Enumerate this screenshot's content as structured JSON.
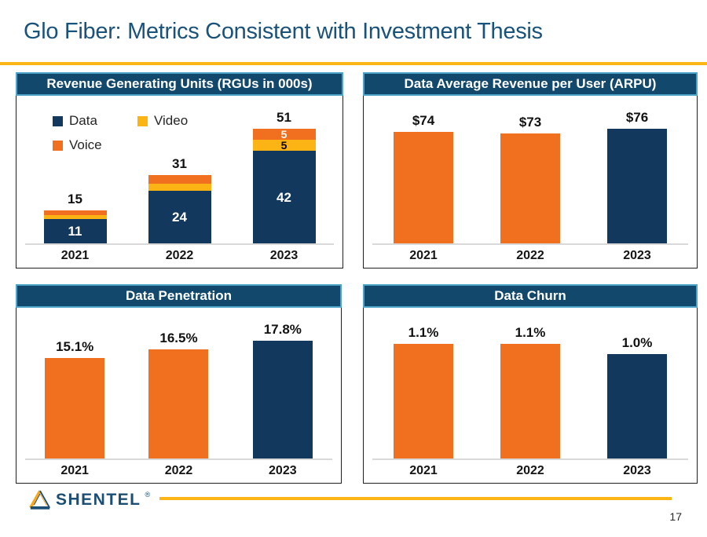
{
  "slide": {
    "title": "Glo Fiber: Metrics Consistent with Investment Thesis",
    "page_number": "17",
    "logo_text": "SHENTEL",
    "logo_reg_mark": "®"
  },
  "colors": {
    "navy": "#12385E",
    "orange": "#F0701F",
    "yellow": "#FCB415",
    "header_bg": "#11486B",
    "header_border": "#4EA3C8",
    "gold_rule": "#FBB616",
    "title_text": "#19527A",
    "axis_line": "#D9D9D9"
  },
  "chart_data": [
    {
      "type": "stacked-bar",
      "title": "Revenue Generating Units (RGUs in 000s)",
      "categories": [
        "2021",
        "2022",
        "2023"
      ],
      "series": [
        {
          "name": "Data",
          "color": "#12385E",
          "values": [
            11,
            24,
            42
          ],
          "labels": [
            "11",
            "24",
            "42"
          ],
          "label_color": "#ffffff"
        },
        {
          "name": "Video",
          "color": "#FCB415",
          "values": [
            2,
            3,
            5
          ],
          "labels": [
            null,
            null,
            "5"
          ],
          "label_color": "#000000"
        },
        {
          "name": "Voice",
          "color": "#F0701F",
          "values": [
            2,
            4,
            5
          ],
          "labels": [
            null,
            null,
            "5"
          ],
          "label_color": "#ffffff"
        }
      ],
      "totals": [
        "15",
        "31",
        "51"
      ],
      "legend": [
        "Data",
        "Video",
        "Voice"
      ],
      "legend_position": "top-left",
      "grid": false,
      "ylim": [
        0,
        65
      ]
    },
    {
      "type": "bar",
      "title": "Data Average Revenue per User (ARPU)",
      "categories": [
        "2021",
        "2022",
        "2023"
      ],
      "values": [
        74,
        73,
        76
      ],
      "labels": [
        "$74",
        "$73",
        "$76"
      ],
      "colors": [
        "#F0701F",
        "#F0701F",
        "#12385E"
      ],
      "grid": false,
      "ylim": [
        0,
        95
      ]
    },
    {
      "type": "bar",
      "title": "Data Penetration",
      "categories": [
        "2021",
        "2022",
        "2023"
      ],
      "values": [
        15.1,
        16.5,
        17.8
      ],
      "labels": [
        "15.1%",
        "16.5%",
        "17.8%"
      ],
      "colors": [
        "#F0701F",
        "#F0701F",
        "#12385E"
      ],
      "grid": false,
      "ylim": [
        0,
        22
      ]
    },
    {
      "type": "bar",
      "title": "Data Churn",
      "categories": [
        "2021",
        "2022",
        "2023"
      ],
      "values": [
        1.1,
        1.1,
        1.0
      ],
      "labels": [
        "1.1%",
        "1.1%",
        "1.0%"
      ],
      "colors": [
        "#F0701F",
        "#F0701F",
        "#12385E"
      ],
      "grid": false,
      "ylim": [
        0,
        1.4
      ]
    }
  ]
}
